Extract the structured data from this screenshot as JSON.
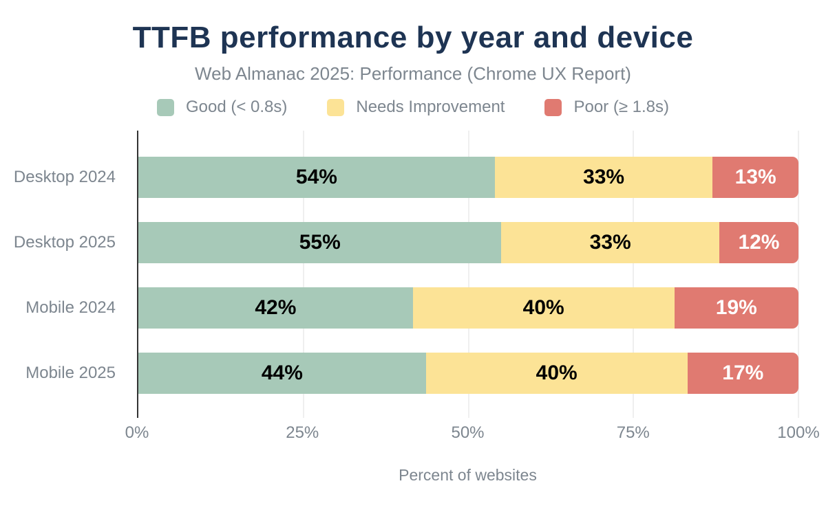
{
  "chart_data": {
    "type": "bar",
    "orientation": "horizontal",
    "stacked": true,
    "title": "TTFB performance by year and device",
    "subtitle": "Web Almanac 2025: Performance (Chrome UX Report)",
    "xlabel": "Percent of websites",
    "xlim": [
      0,
      100
    ],
    "x_ticks": [
      "0%",
      "25%",
      "50%",
      "75%",
      "100%"
    ],
    "grid": "vertical gridlines at ticks, light gray",
    "legend_position": "top",
    "categories": [
      "Desktop 2024",
      "Desktop 2025",
      "Mobile 2024",
      "Mobile 2025"
    ],
    "series": [
      {
        "name": "Good (< 0.8s)",
        "color": "#a7c9b8",
        "values": [
          54,
          55,
          42,
          44
        ]
      },
      {
        "name": "Needs Improvement",
        "color": "#fce396",
        "values": [
          33,
          33,
          40,
          40
        ]
      },
      {
        "name": "Poor (≥ 1.8s)",
        "color": "#e07a71",
        "values": [
          13,
          12,
          19,
          17
        ]
      }
    ],
    "rows": [
      {
        "label": "Desktop 2024",
        "segments": [
          {
            "text": "54%",
            "value": 54
          },
          {
            "text": "33%",
            "value": 33
          },
          {
            "text": "13%",
            "value": 13
          }
        ]
      },
      {
        "label": "Desktop 2025",
        "segments": [
          {
            "text": "55%",
            "value": 55
          },
          {
            "text": "33%",
            "value": 33
          },
          {
            "text": "12%",
            "value": 12
          }
        ]
      },
      {
        "label": "Mobile 2024",
        "segments": [
          {
            "text": "42%",
            "value": 42
          },
          {
            "text": "40%",
            "value": 40
          },
          {
            "text": "19%",
            "value": 19
          }
        ]
      },
      {
        "label": "Mobile 2025",
        "segments": [
          {
            "text": "44%",
            "value": 44
          },
          {
            "text": "40%",
            "value": 40
          },
          {
            "text": "17%",
            "value": 17
          }
        ]
      }
    ]
  },
  "colors": {
    "title": "#1e3453",
    "muted_text": "#7d868f",
    "good": "#a7c9b8",
    "needs_improvement": "#fce396",
    "poor": "#e07a71",
    "axis_line": "#333333",
    "gridline": "#efefef",
    "value_label_on_poor": "#ffffff",
    "value_label_default": "#000000",
    "background": "#ffffff"
  }
}
